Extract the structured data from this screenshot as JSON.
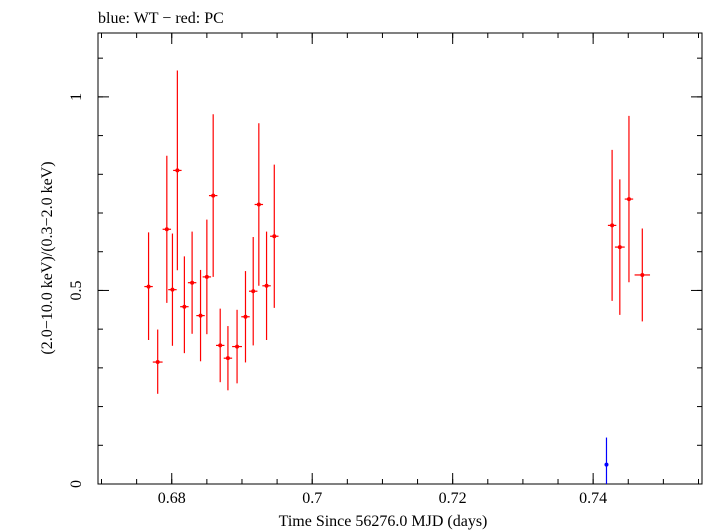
{
  "chart_data": {
    "type": "scatter",
    "title": "blue: WT − red: PC",
    "xlabel": "Time Since 56276.0 MJD (days)",
    "ylabel": "(2.0−10.0 keV)/(0.3−2.0 keV)",
    "xlim": [
      0.6695,
      0.7555
    ],
    "ylim": [
      0,
      1.165
    ],
    "x_ticks": [
      0.68,
      0.7,
      0.72,
      0.74
    ],
    "x_tick_labels": [
      "0.68",
      "0.7",
      "0.72",
      "0.74"
    ],
    "y_ticks": [
      0,
      0.5,
      1
    ],
    "y_tick_labels": [
      "0",
      "0.5",
      "1"
    ],
    "grid": false,
    "series": [
      {
        "name": "PC",
        "color": "#ff0000",
        "points": [
          {
            "x": 0.6767,
            "y": 0.51,
            "xerr": 0.0006,
            "yerr_low": 0.138,
            "yerr_high": 0.14
          },
          {
            "x": 0.678,
            "y": 0.315,
            "xerr": 0.0007,
            "yerr_low": 0.082,
            "yerr_high": 0.084
          },
          {
            "x": 0.6793,
            "y": 0.658,
            "xerr": 0.0006,
            "yerr_low": 0.19,
            "yerr_high": 0.19
          },
          {
            "x": 0.6801,
            "y": 0.502,
            "xerr": 0.0006,
            "yerr_low": 0.145,
            "yerr_high": 0.145
          },
          {
            "x": 0.6808,
            "y": 0.81,
            "xerr": 0.0006,
            "yerr_low": 0.258,
            "yerr_high": 0.258
          },
          {
            "x": 0.6818,
            "y": 0.458,
            "xerr": 0.0006,
            "yerr_low": 0.12,
            "yerr_high": 0.13
          },
          {
            "x": 0.6829,
            "y": 0.52,
            "xerr": 0.0006,
            "yerr_low": 0.132,
            "yerr_high": 0.132
          },
          {
            "x": 0.6841,
            "y": 0.435,
            "xerr": 0.0006,
            "yerr_low": 0.118,
            "yerr_high": 0.118
          },
          {
            "x": 0.685,
            "y": 0.535,
            "xerr": 0.0006,
            "yerr_low": 0.148,
            "yerr_high": 0.148
          },
          {
            "x": 0.6859,
            "y": 0.745,
            "xerr": 0.0006,
            "yerr_low": 0.21,
            "yerr_high": 0.21
          },
          {
            "x": 0.6869,
            "y": 0.358,
            "xerr": 0.0006,
            "yerr_low": 0.095,
            "yerr_high": 0.095
          },
          {
            "x": 0.688,
            "y": 0.325,
            "xerr": 0.0006,
            "yerr_low": 0.083,
            "yerr_high": 0.083
          },
          {
            "x": 0.6893,
            "y": 0.355,
            "xerr": 0.0007,
            "yerr_low": 0.095,
            "yerr_high": 0.095
          },
          {
            "x": 0.6905,
            "y": 0.432,
            "xerr": 0.0006,
            "yerr_low": 0.118,
            "yerr_high": 0.118
          },
          {
            "x": 0.6916,
            "y": 0.498,
            "xerr": 0.0006,
            "yerr_low": 0.14,
            "yerr_high": 0.14
          },
          {
            "x": 0.6924,
            "y": 0.722,
            "xerr": 0.0006,
            "yerr_low": 0.21,
            "yerr_high": 0.21
          },
          {
            "x": 0.6935,
            "y": 0.512,
            "xerr": 0.0006,
            "yerr_low": 0.14,
            "yerr_high": 0.14
          },
          {
            "x": 0.6946,
            "y": 0.64,
            "xerr": 0.0006,
            "yerr_low": 0.185,
            "yerr_high": 0.185
          },
          {
            "x": 0.7427,
            "y": 0.668,
            "xerr": 0.0006,
            "yerr_low": 0.195,
            "yerr_high": 0.195
          },
          {
            "x": 0.7438,
            "y": 0.612,
            "xerr": 0.0007,
            "yerr_low": 0.175,
            "yerr_high": 0.175
          },
          {
            "x": 0.7451,
            "y": 0.736,
            "xerr": 0.0006,
            "yerr_low": 0.215,
            "yerr_high": 0.215
          },
          {
            "x": 0.747,
            "y": 0.54,
            "xerr": 0.0011,
            "yerr_low": 0.12,
            "yerr_high": 0.12
          }
        ]
      },
      {
        "name": "WT",
        "color": "#0000ff",
        "points": [
          {
            "x": 0.7419,
            "y": 0.05,
            "xerr": 0.0001,
            "yerr_low": 0.05,
            "yerr_high": 0.07
          }
        ]
      }
    ]
  }
}
